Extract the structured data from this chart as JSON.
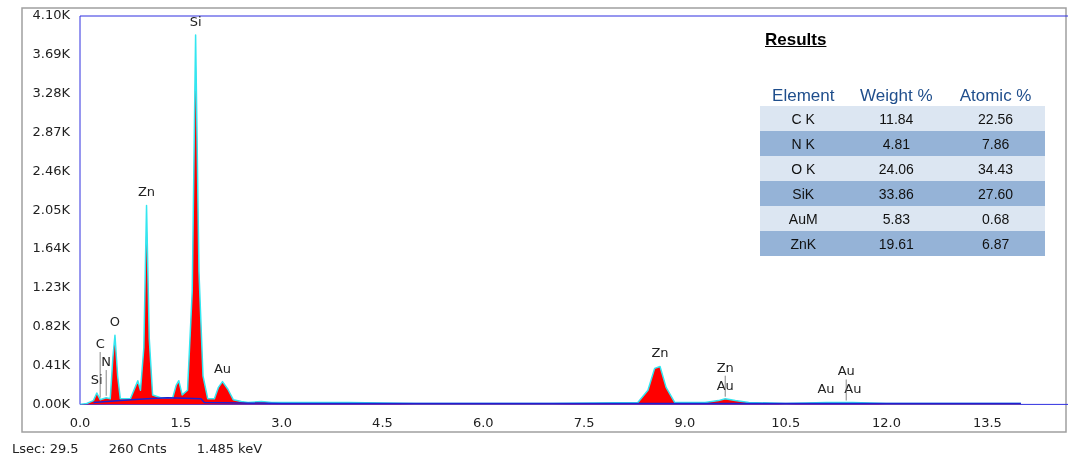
{
  "chart_data": [
    {
      "type": "area",
      "xlim": [
        0,
        14.7
      ],
      "ylim": [
        0,
        4100
      ],
      "xticks": [
        {
          "value": 0,
          "label": "0.0"
        },
        {
          "value": 1.5,
          "label": "1.5"
        },
        {
          "value": 3,
          "label": "3.0"
        },
        {
          "value": 4.5,
          "label": "4.5"
        },
        {
          "value": 6,
          "label": "6.0"
        },
        {
          "value": 7.5,
          "label": "7.5"
        },
        {
          "value": 9,
          "label": "9.0"
        },
        {
          "value": 10.5,
          "label": "10.5"
        },
        {
          "value": 12,
          "label": "12.0"
        },
        {
          "value": 13.5,
          "label": "13.5"
        }
      ],
      "yticks": [
        {
          "value": 0,
          "label": "0.00K"
        },
        {
          "value": 410,
          "label": "0.41K"
        },
        {
          "value": 820,
          "label": "0.82K"
        },
        {
          "value": 1230,
          "label": "1.23K"
        },
        {
          "value": 1640,
          "label": "1.64K"
        },
        {
          "value": 2050,
          "label": "2.05K"
        },
        {
          "value": 2460,
          "label": "2.46K"
        },
        {
          "value": 2870,
          "label": "2.87K"
        },
        {
          "value": 3280,
          "label": "3.28K"
        },
        {
          "value": 3690,
          "label": "3.69K"
        },
        {
          "value": 4100,
          "label": "4.10K"
        }
      ],
      "series": [
        {
          "type": "area",
          "color": "#ff0000",
          "x": [
            0,
            0.1,
            0.2,
            0.25,
            0.3,
            0.39,
            0.45,
            0.49,
            0.52,
            0.56,
            0.6,
            0.75,
            0.82,
            0.86,
            0.9,
            0.95,
            0.99,
            1.03,
            1.08,
            1.2,
            1.38,
            1.43,
            1.47,
            1.52,
            1.6,
            1.67,
            1.72,
            1.77,
            1.83,
            1.9,
            2.0,
            2.06,
            2.12,
            2.2,
            2.28,
            2.4,
            2.5,
            2.7,
            2.85,
            3.5,
            4,
            5,
            7,
            8.3,
            8.45,
            8.55,
            8.63,
            8.72,
            8.85,
            9.3,
            9.5,
            9.6,
            9.75,
            9.95,
            10.5,
            11.1,
            11.4,
            11.5,
            12,
            14.0
          ],
          "values": [
            0,
            10,
            40,
            120,
            50,
            70,
            60,
            500,
            730,
            300,
            60,
            60,
            180,
            250,
            150,
            600,
            2100,
            700,
            100,
            70,
            70,
            200,
            250,
            100,
            150,
            1200,
            3900,
            1400,
            300,
            60,
            60,
            180,
            240,
            160,
            50,
            30,
            20,
            30,
            20,
            20,
            20,
            10,
            10,
            20,
            150,
            380,
            400,
            180,
            20,
            20,
            40,
            60,
            40,
            20,
            10,
            20,
            20,
            20,
            10,
            10
          ]
        },
        {
          "type": "line",
          "color": "#1f1fd0",
          "x": [
            0.2,
            0.6,
            1.0,
            1.3,
            1.8,
            1.85,
            3,
            14.0
          ],
          "values": [
            20,
            40,
            60,
            70,
            60,
            20,
            10,
            10
          ]
        }
      ],
      "annotations": [
        {
          "text": "Si",
          "x": 0.25,
          "y": 120
        },
        {
          "text": "N",
          "x": 0.39,
          "y": 70
        },
        {
          "text": "C",
          "x": 0.3,
          "y": 50
        },
        {
          "text": "O",
          "x": 0.52,
          "y": 730
        },
        {
          "text": "Zn",
          "x": 0.99,
          "y": 2100
        },
        {
          "text": "Si",
          "x": 1.72,
          "y": 3900
        },
        {
          "text": "Au",
          "x": 2.12,
          "y": 240
        },
        {
          "text": "Zn",
          "x": 8.63,
          "y": 400
        },
        {
          "text": "Au",
          "x": 9.6,
          "y": 60
        },
        {
          "text": "Zn",
          "x": 9.6,
          "y": 60
        },
        {
          "text": "Au",
          "x": 11.1,
          "y": 20
        },
        {
          "text": "Au",
          "x": 11.5,
          "y": 20
        },
        {
          "text": "Au",
          "x": 11.4,
          "y": 20
        },
        "Results",
        "Lsec: 29.5",
        "260 Cnts",
        "1.485 keV"
      ],
      "grid": false,
      "legend": false
    },
    {
      "type": "other",
      "xlabel": "Element",
      "categories": [
        "C K",
        "N K",
        "O K",
        "SiK",
        "AuM",
        "ZnK"
      ],
      "series": [
        {
          "name": "Weight %",
          "colors": [
            "#dce6f2",
            "#95b3d7",
            "#dce6f2",
            "#95b3d7",
            "#dce6f2",
            "#95b3d7"
          ],
          "values": [
            11.84,
            4.81,
            24.06,
            33.86,
            5.83,
            19.61
          ],
          "value_labels": [
            "11.84",
            "4.81",
            "24.06",
            "33.86",
            "5.83",
            "19.61"
          ]
        },
        {
          "name": "Atomic %",
          "colors": [
            "#dce6f2",
            "#95b3d7",
            "#dce6f2",
            "#95b3d7",
            "#dce6f2",
            "#95b3d7"
          ],
          "values": [
            22.56,
            7.86,
            34.43,
            27.6,
            0.68,
            6.87
          ],
          "value_labels": [
            "22.56",
            "7.86",
            "34.43",
            "27.60",
            "0.68",
            "6.87"
          ]
        }
      ]
    }
  ]
}
